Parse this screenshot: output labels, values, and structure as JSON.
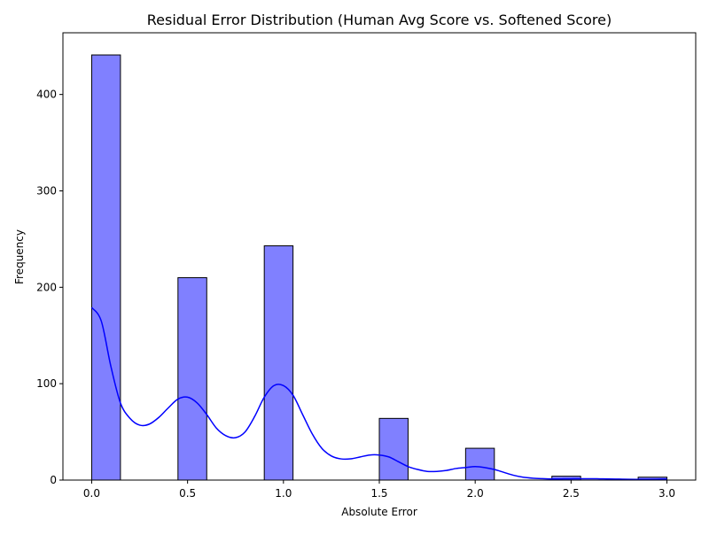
{
  "chart_data": {
    "type": "bar",
    "title": "Residual Error Distribution (Human Avg Score vs. Softened Score)",
    "xlabel": "Absolute Error",
    "ylabel": "Frequency",
    "xlim": [
      -0.15,
      3.15
    ],
    "ylim": [
      0,
      464
    ],
    "xticks": [
      0.0,
      0.5,
      1.0,
      1.5,
      2.0,
      2.5,
      3.0
    ],
    "xtick_labels": [
      "0.0",
      "0.5",
      "1.0",
      "1.5",
      "2.0",
      "2.5",
      "3.0"
    ],
    "yticks": [
      0,
      100,
      200,
      300,
      400
    ],
    "ytick_labels": [
      "0",
      "100",
      "200",
      "300",
      "400"
    ],
    "bin_width": 0.15,
    "bins": [
      {
        "x0": 0.0,
        "x1": 0.15,
        "count": 441
      },
      {
        "x0": 0.15,
        "x1": 0.3,
        "count": 0
      },
      {
        "x0": 0.3,
        "x1": 0.45,
        "count": 0
      },
      {
        "x0": 0.45,
        "x1": 0.6,
        "count": 210
      },
      {
        "x0": 0.6,
        "x1": 0.75,
        "count": 0
      },
      {
        "x0": 0.75,
        "x1": 0.9,
        "count": 0
      },
      {
        "x0": 0.9,
        "x1": 1.05,
        "count": 243
      },
      {
        "x0": 1.05,
        "x1": 1.2,
        "count": 0
      },
      {
        "x0": 1.2,
        "x1": 1.35,
        "count": 0
      },
      {
        "x0": 1.35,
        "x1": 1.5,
        "count": 0
      },
      {
        "x0": 1.5,
        "x1": 1.65,
        "count": 64
      },
      {
        "x0": 1.65,
        "x1": 1.8,
        "count": 0
      },
      {
        "x0": 1.8,
        "x1": 1.95,
        "count": 0
      },
      {
        "x0": 1.95,
        "x1": 2.1,
        "count": 33
      },
      {
        "x0": 2.1,
        "x1": 2.25,
        "count": 0
      },
      {
        "x0": 2.25,
        "x1": 2.4,
        "count": 0
      },
      {
        "x0": 2.4,
        "x1": 2.55,
        "count": 4
      },
      {
        "x0": 2.55,
        "x1": 2.7,
        "count": 0
      },
      {
        "x0": 2.7,
        "x1": 2.85,
        "count": 0
      },
      {
        "x0": 2.85,
        "x1": 3.0,
        "count": 3
      }
    ],
    "kde": {
      "x": [
        0.0,
        0.05,
        0.1,
        0.15,
        0.2,
        0.25,
        0.3,
        0.35,
        0.4,
        0.45,
        0.5,
        0.55,
        0.6,
        0.65,
        0.7,
        0.75,
        0.8,
        0.85,
        0.9,
        0.95,
        1.0,
        1.05,
        1.1,
        1.15,
        1.2,
        1.25,
        1.3,
        1.35,
        1.4,
        1.45,
        1.5,
        1.55,
        1.6,
        1.65,
        1.7,
        1.75,
        1.8,
        1.85,
        1.9,
        1.95,
        2.0,
        2.05,
        2.1,
        2.15,
        2.2,
        2.25,
        2.3,
        2.35,
        2.4,
        2.45,
        2.5,
        2.55,
        2.6,
        2.65,
        2.7,
        2.75,
        2.8,
        2.85,
        2.9,
        2.95,
        3.0
      ],
      "y": [
        179,
        165,
        118,
        80,
        64,
        57,
        58,
        65,
        75,
        84,
        86,
        80,
        68,
        54,
        46,
        44,
        50,
        66,
        86,
        98,
        98,
        88,
        68,
        48,
        33,
        25,
        22,
        22,
        24,
        26,
        26,
        24,
        19,
        14,
        11,
        9,
        9,
        10,
        12,
        13,
        14,
        13,
        11,
        8,
        5,
        3,
        2,
        1.5,
        1.2,
        1.2,
        1.3,
        1.4,
        1.4,
        1.3,
        1.2,
        1.0,
        0.8,
        0.7,
        0.7,
        0.8,
        1.0
      ]
    },
    "bar_fill": "#8080ff",
    "bar_edge": "#000000",
    "kde_color": "#0000ff",
    "grid": false,
    "legend": "none"
  }
}
